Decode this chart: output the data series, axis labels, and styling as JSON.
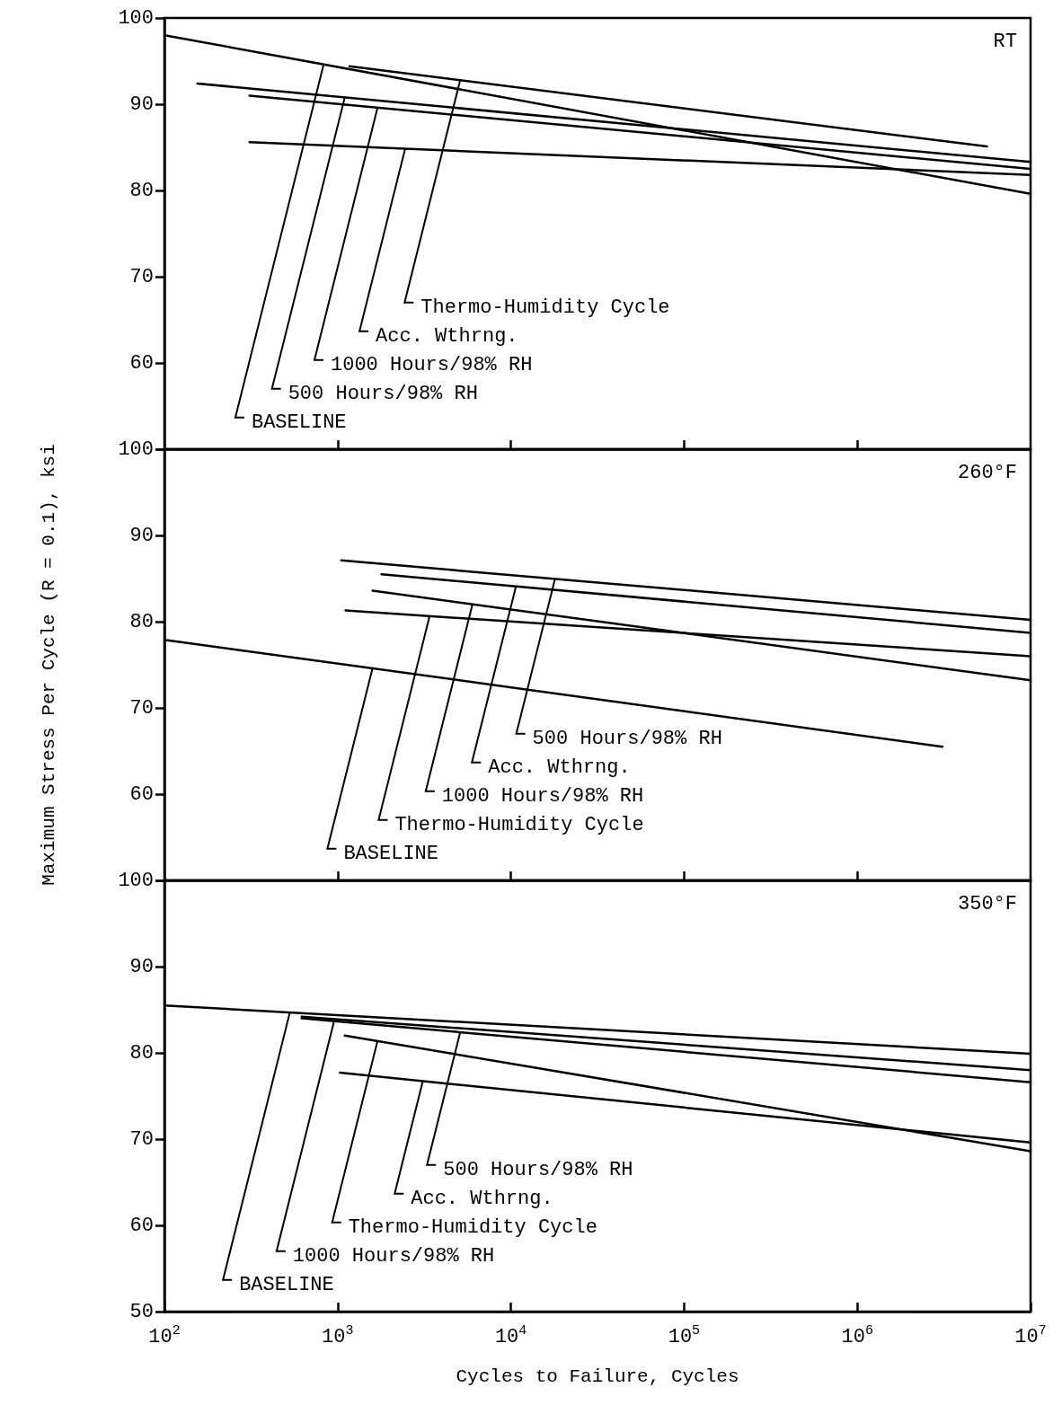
{
  "chart_data": [
    {
      "type": "line",
      "title": "RT",
      "log": "x",
      "xlim": [
        100,
        10000000
      ],
      "ylim": [
        50,
        100
      ],
      "xticks": [
        {
          "value": 1000,
          "label": null
        },
        {
          "value": 10000,
          "label": null
        },
        {
          "value": 100000,
          "label": null
        },
        {
          "value": 1000000,
          "label": null
        }
      ],
      "yticks": [
        {
          "value": 50,
          "label": null
        },
        60,
        70,
        80,
        90,
        100
      ],
      "tick_labels": "y",
      "grid": false,
      "marker": "none",
      "line_style": "solid",
      "series": [
        {
          "color": "#000000",
          "x": [
            100,
            10000000
          ],
          "values": [
            98,
            79.6
          ]
        },
        {
          "color": "#000000",
          "x": [
            155,
            10000000
          ],
          "values": [
            92.4,
            83.3
          ]
        },
        {
          "color": "#000000",
          "x": [
            310,
            10000000
          ],
          "values": [
            91,
            82.5
          ]
        },
        {
          "color": "#000000",
          "x": [
            310,
            10000000
          ],
          "values": [
            85.6,
            81.8
          ]
        },
        {
          "color": "#000000",
          "x": [
            1170,
            5600000
          ],
          "values": [
            94.4,
            85.1
          ]
        }
      ],
      "annotations": [
        {
          "text": "Thermo-Humidity Cycle",
          "x": 5100,
          "y": 92.8
        },
        {
          "text": "Acc. Wthrng.",
          "x": 2450,
          "y": 84.8
        },
        {
          "text": "1000 Hours/98% RH",
          "x": 1700,
          "y": 89.6
        },
        {
          "text": "500 Hours/98% RH",
          "x": 1100,
          "y": 90.8
        },
        {
          "text": "BASELINE",
          "x": 830,
          "y": 94.6
        }
      ]
    },
    {
      "type": "line",
      "title": "260°F",
      "ylabel": "Maximum Stress Per Cycle (R = 0.1), ksi",
      "log": "x",
      "xlim": [
        100,
        10000000
      ],
      "ylim": [
        50,
        100
      ],
      "xticks": [
        {
          "value": 1000,
          "label": null
        },
        {
          "value": 10000,
          "label": null
        },
        {
          "value": 100000,
          "label": null
        },
        {
          "value": 1000000,
          "label": null
        }
      ],
      "yticks": [
        {
          "value": 50,
          "label": null
        },
        60,
        70,
        80,
        90,
        100
      ],
      "tick_labels": "y",
      "grid": false,
      "marker": "none",
      "line_style": "solid",
      "series": [
        {
          "color": "#000000",
          "x": [
            1050,
            10000000
          ],
          "values": [
            87.1,
            80.2
          ]
        },
        {
          "color": "#000000",
          "x": [
            1790,
            10000000
          ],
          "values": [
            85.5,
            78.7
          ]
        },
        {
          "color": "#000000",
          "x": [
            1590,
            10000000
          ],
          "values": [
            83.6,
            73.2
          ]
        },
        {
          "color": "#000000",
          "x": [
            1110,
            10000000
          ],
          "values": [
            81.3,
            76
          ]
        },
        {
          "color": "#000000",
          "x": [
            100,
            3100000
          ],
          "values": [
            77.9,
            65.5
          ]
        }
      ],
      "annotations": [
        {
          "text": "500 Hours/98% RH",
          "x": 18000,
          "y": 85
        },
        {
          "text": "Acc. Wthrng.",
          "x": 10700,
          "y": 84.1
        },
        {
          "text": "1000 Hours/98% RH",
          "x": 6000,
          "y": 82
        },
        {
          "text": "Thermo-Humidity Cycle",
          "x": 3400,
          "y": 80.7
        },
        {
          "text": "BASELINE",
          "x": 1590,
          "y": 74.6
        }
      ]
    },
    {
      "type": "line",
      "title": "350°F",
      "xlabel": "Cycles to Failure, Cycles",
      "log": "x",
      "xlim": [
        100,
        10000000
      ],
      "ylim": [
        50,
        100
      ],
      "xticks": [
        {
          "value": 100,
          "label": "10$^{2}$"
        },
        {
          "value": 1000,
          "label": "10$^{3}$"
        },
        {
          "value": 10000,
          "label": "10$^{4}$"
        },
        {
          "value": 100000,
          "label": "10$^{5}$"
        },
        {
          "value": 1000000,
          "label": "10$^{6}$"
        },
        {
          "value": 10000000,
          "label": "10$^{7}$"
        }
      ],
      "yticks": [
        50,
        60,
        70,
        80,
        90,
        100
      ],
      "grid": false,
      "marker": "none",
      "line_style": "solid",
      "series": [
        {
          "color": "#000000",
          "x": [
            100,
            10000000
          ],
          "values": [
            85.5,
            79.9
          ]
        },
        {
          "color": "#000000",
          "x": [
            620,
            10000000
          ],
          "values": [
            84.2,
            78
          ]
        },
        {
          "color": "#000000",
          "x": [
            620,
            10000000
          ],
          "values": [
            84,
            76.6
          ]
        },
        {
          "color": "#000000",
          "x": [
            1100,
            10000000
          ],
          "values": [
            82,
            68.6
          ]
        },
        {
          "color": "#000000",
          "x": [
            1030,
            10000000
          ],
          "values": [
            77.7,
            69.6
          ]
        }
      ],
      "annotations": [
        {
          "text": "500 Hours/98% RH",
          "x": 5100,
          "y": 82.4
        },
        {
          "text": "Acc. Wthrng.",
          "x": 3100,
          "y": 76.7
        },
        {
          "text": "Thermo-Humidity Cycle",
          "x": 1700,
          "y": 81.4
        },
        {
          "text": "1000 Hours/98% RH",
          "x": 960,
          "y": 83.9
        },
        {
          "text": "BASELINE",
          "x": 530,
          "y": 84.7
        }
      ]
    }
  ]
}
